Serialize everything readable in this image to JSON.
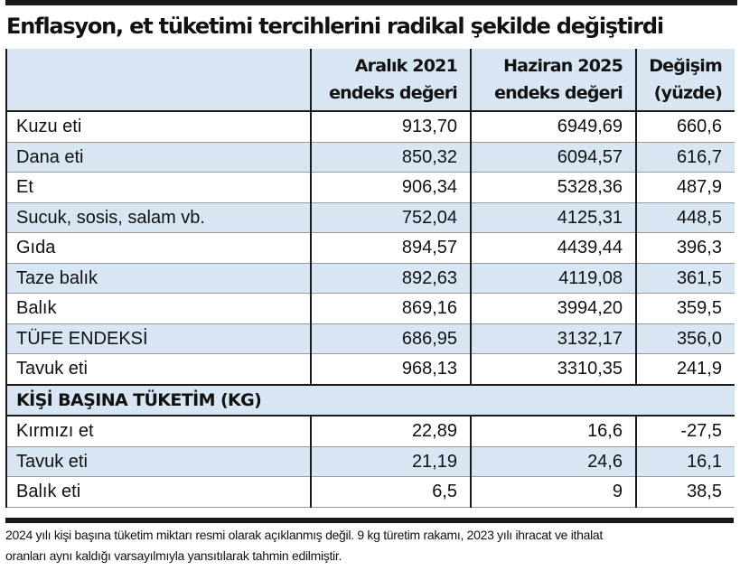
{
  "title": "Enflasyon, et tüketimi tercihlerini radikal şekilde değiştirdi",
  "headers": {
    "col2_line1": "Aralık 2021",
    "col2_line2": "endeks değeri",
    "col3_line1": "Haziran 2025",
    "col3_line2": "endeks değeri",
    "col4_line1": "Değişim",
    "col4_line2": "(yüzde)"
  },
  "index_rows": [
    {
      "label": "Kuzu eti",
      "dec2021": "913,70",
      "jun2025": "6949,69",
      "change": "660,6"
    },
    {
      "label": "Dana eti",
      "dec2021": "850,32",
      "jun2025": "6094,57",
      "change": "616,7"
    },
    {
      "label": "Et",
      "dec2021": "906,34",
      "jun2025": "5328,36",
      "change": "487,9"
    },
    {
      "label": "Sucuk, sosis, salam vb.",
      "dec2021": "752,04",
      "jun2025": "4125,31",
      "change": "448,5"
    },
    {
      "label": "Gıda",
      "dec2021": "894,57",
      "jun2025": "4439,44",
      "change": "396,3"
    },
    {
      "label": "Taze balık",
      "dec2021": "892,63",
      "jun2025": "4119,08",
      "change": "361,5"
    },
    {
      "label": "Balık",
      "dec2021": "869,16",
      "jun2025": "3994,20",
      "change": "359,5"
    },
    {
      "label": "TÜFE ENDEKSİ",
      "dec2021": "686,95",
      "jun2025": "3132,17",
      "change": "356,0"
    },
    {
      "label": "Tavuk eti",
      "dec2021": "968,13",
      "jun2025": "3310,35",
      "change": "241,9"
    }
  ],
  "section_title": "KİŞİ BAŞINA TÜKETİM (KG)",
  "consumption_rows": [
    {
      "label": "Kırmızı et",
      "dec2021": "22,89",
      "jun2025": "16,6",
      "change": "-27,5"
    },
    {
      "label": "Tavuk eti",
      "dec2021": "21,19",
      "jun2025": "24,6",
      "change": "16,1"
    },
    {
      "label": "Balık eti",
      "dec2021": "6,5",
      "jun2025": "9",
      "change": "38,5"
    }
  ],
  "footnote": {
    "line1": "2024 yılı kişi başına tüketim miktarı resmi olarak açıklanmış değil. 9 kg türetim rakamı, 2023 yılı ihracat ve ithalat",
    "line2": "oranları aynı kaldığı varsayılmıyla yansıtılarak tahmin edilmiştir."
  },
  "colors": {
    "row_highlight": "#d8e6f3",
    "rule": "#1a1a1a"
  }
}
